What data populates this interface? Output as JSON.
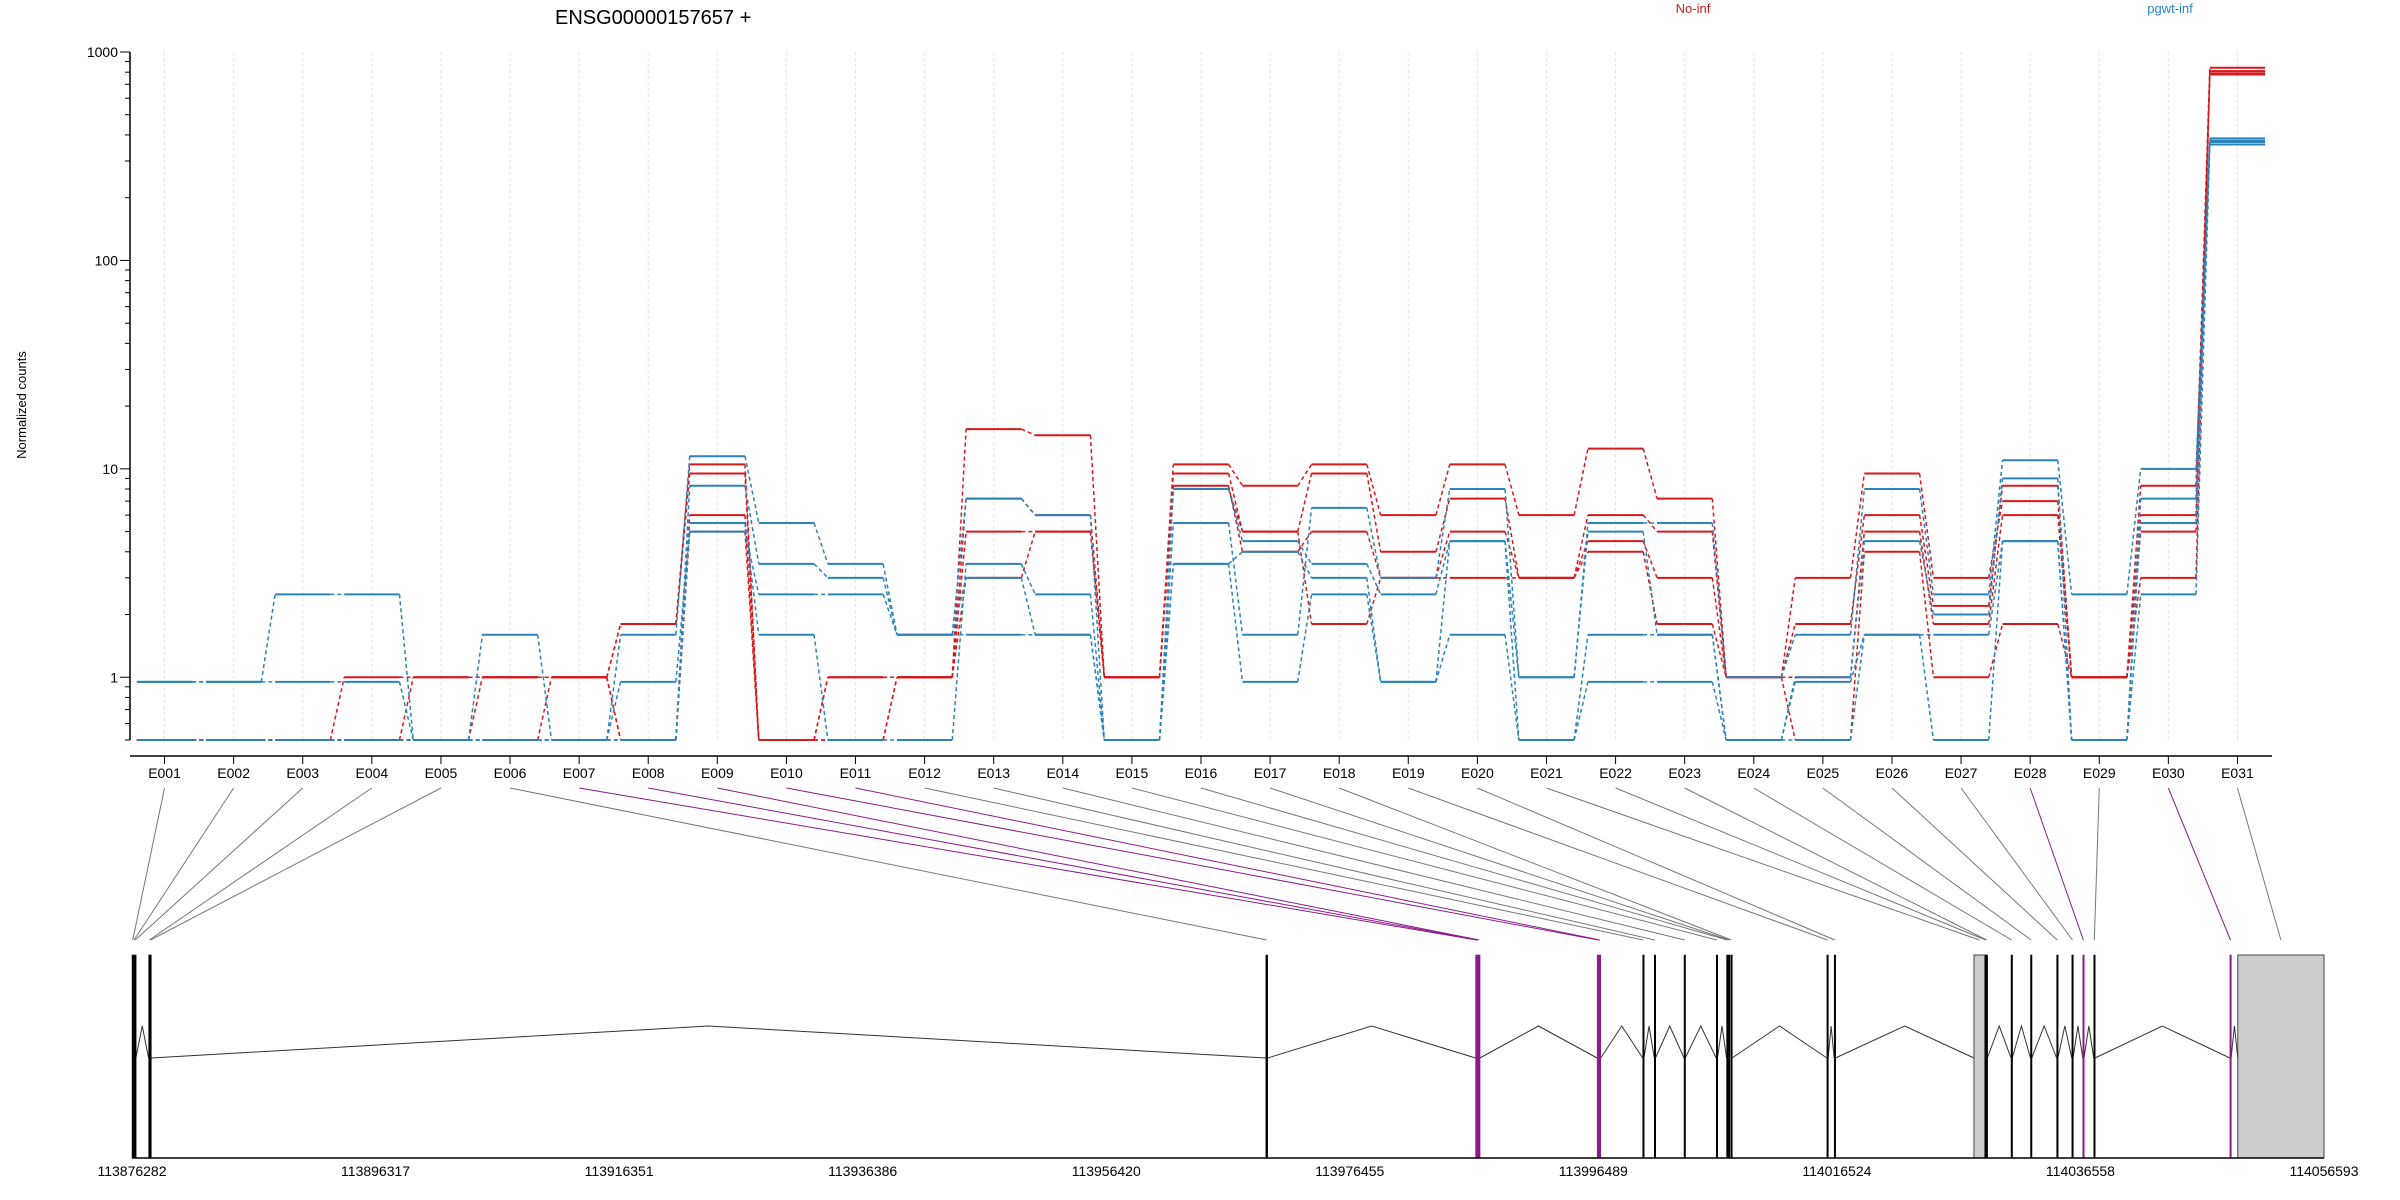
{
  "chart_data": {
    "type": "line",
    "title": "ENSG00000157657 +",
    "ylabel": "Normalized counts",
    "yscale": "log",
    "ylim": [
      0.5,
      1000
    ],
    "yticks": [
      "1",
      "10",
      "100",
      "1000"
    ],
    "categories": [
      "E001",
      "E002",
      "E003",
      "E004",
      "E005",
      "E006",
      "E007",
      "E008",
      "E009",
      "E010",
      "E011",
      "E012",
      "E013",
      "E014",
      "E015",
      "E016",
      "E017",
      "E018",
      "E019",
      "E020",
      "E021",
      "E022",
      "E023",
      "E024",
      "E025",
      "E026",
      "E027",
      "E028",
      "E029",
      "E030",
      "E031"
    ],
    "legend": [
      {
        "label": "No-inf",
        "color": "#d7191c"
      },
      {
        "label": "pgwt-inf",
        "color": "#2b83ba"
      }
    ],
    "series": [
      {
        "group": "No-inf",
        "color": "#d7191c",
        "values": [
          0.5,
          0.5,
          0.5,
          1.0,
          1.0,
          1.0,
          1.0,
          1.8,
          10.5,
          0.5,
          1.0,
          1.0,
          15.5,
          14.5,
          1.0,
          10.5,
          8.3,
          10.5,
          6.0,
          10.5,
          6.0,
          12.5,
          7.2,
          1.0,
          3.0,
          9.5,
          3.0,
          7.0,
          1.0,
          8.3,
          840
        ]
      },
      {
        "group": "No-inf",
        "color": "#d7191c",
        "values": [
          0.5,
          0.5,
          0.5,
          0.5,
          1.0,
          1.0,
          1.0,
          1.8,
          9.5,
          0.5,
          1.0,
          1.0,
          7.2,
          6.0,
          1.0,
          9.5,
          5.0,
          9.5,
          4.0,
          7.2,
          3.0,
          6.0,
          5.0,
          1.0,
          1.8,
          6.0,
          2.2,
          8.3,
          1.0,
          6.0,
          810
        ]
      },
      {
        "group": "No-inf",
        "color": "#d7191c",
        "values": [
          0.5,
          0.5,
          0.5,
          0.5,
          0.5,
          1.0,
          1.0,
          0.5,
          6.0,
          0.5,
          0.5,
          1.0,
          5.0,
          5.0,
          1.0,
          8.3,
          4.0,
          5.0,
          3.0,
          5.0,
          3.0,
          4.5,
          3.0,
          1.0,
          1.0,
          5.0,
          1.8,
          6.0,
          1.0,
          5.0,
          790
        ]
      },
      {
        "group": "No-inf",
        "color": "#d7191c",
        "values": [
          0.5,
          0.5,
          0.5,
          0.5,
          0.5,
          0.5,
          1.0,
          0.5,
          5.0,
          0.5,
          0.5,
          1.0,
          3.0,
          5.0,
          1.0,
          8.0,
          5.0,
          1.8,
          3.0,
          3.0,
          3.0,
          4.0,
          1.8,
          1.0,
          0.5,
          4.0,
          1.0,
          1.8,
          1.0,
          3.0,
          780
        ]
      },
      {
        "group": "pgwt-inf",
        "color": "#2b83ba",
        "values": [
          0.95,
          0.95,
          2.5,
          2.5,
          0.5,
          1.6,
          0.5,
          1.6,
          11.5,
          5.5,
          3.5,
          1.6,
          1.6,
          1.6,
          0.5,
          5.5,
          1.6,
          6.5,
          3.0,
          8.0,
          1.0,
          5.5,
          5.5,
          1.0,
          1.6,
          8.0,
          2.5,
          11.0,
          2.5,
          10.0,
          385
        ]
      },
      {
        "group": "pgwt-inf",
        "color": "#2b83ba",
        "values": [
          0.5,
          0.5,
          0.5,
          0.5,
          0.5,
          0.5,
          0.5,
          0.5,
          8.3,
          3.5,
          3.0,
          1.6,
          7.2,
          6.0,
          0.5,
          8.0,
          4.5,
          3.5,
          2.5,
          4.5,
          1.0,
          5.0,
          1.6,
          0.5,
          1.0,
          4.5,
          2.0,
          9.0,
          0.5,
          7.2,
          375
        ]
      },
      {
        "group": "pgwt-inf",
        "color": "#2b83ba",
        "values": [
          0.5,
          0.5,
          0.5,
          0.5,
          0.5,
          0.5,
          0.5,
          0.5,
          5.5,
          1.6,
          0.5,
          0.5,
          3.5,
          2.5,
          0.5,
          3.5,
          0.95,
          2.5,
          0.95,
          1.6,
          0.5,
          0.95,
          0.95,
          0.5,
          0.95,
          1.6,
          0.5,
          4.5,
          0.5,
          2.5,
          360
        ]
      },
      {
        "group": "pgwt-inf",
        "color": "#2b83ba",
        "values": [
          0.95,
          0.95,
          0.95,
          0.95,
          0.5,
          0.5,
          0.5,
          0.95,
          5.0,
          2.5,
          2.5,
          1.6,
          3.0,
          1.6,
          0.5,
          3.5,
          4.0,
          3.0,
          0.95,
          4.5,
          0.5,
          1.6,
          1.6,
          0.5,
          0.5,
          1.6,
          1.6,
          4.5,
          0.5,
          5.5,
          370
        ]
      }
    ],
    "gene_model": {
      "coordinate_ticks": [
        "113876282",
        "113896317",
        "113916351",
        "113936386",
        "113956420",
        "113976455",
        "113996489",
        "114016524",
        "114036558",
        "114056593"
      ],
      "xlim": [
        113876282,
        114056593
      ],
      "exons": [
        {
          "id": "E001",
          "start": 113876282,
          "end": 113876400,
          "flag": false
        },
        {
          "id": "E002",
          "start": 113876400,
          "end": 113876500,
          "flag": false
        },
        {
          "id": "E003",
          "start": 113876500,
          "end": 113876600,
          "flag": false
        },
        {
          "id": "E004",
          "start": 113877650,
          "end": 113877750,
          "flag": false
        },
        {
          "id": "E005",
          "start": 113877750,
          "end": 113877850,
          "flag": false
        },
        {
          "id": "E006",
          "start": 113969550,
          "end": 113969700,
          "flag": false
        },
        {
          "id": "E007",
          "start": 113986800,
          "end": 113986950,
          "flag": true
        },
        {
          "id": "E008",
          "start": 113986950,
          "end": 113987050,
          "flag": true
        },
        {
          "id": "E009",
          "start": 113987050,
          "end": 113987150,
          "flag": true
        },
        {
          "id": "E010",
          "start": 113996800,
          "end": 113996950,
          "flag": true
        },
        {
          "id": "E011",
          "start": 113996950,
          "end": 113997100,
          "flag": true
        },
        {
          "id": "E012",
          "start": 114000550,
          "end": 114000650,
          "flag": false
        },
        {
          "id": "E013",
          "start": 114001500,
          "end": 114001600,
          "flag": false
        },
        {
          "id": "E014",
          "start": 114003950,
          "end": 114004050,
          "flag": false
        },
        {
          "id": "E015",
          "start": 114006600,
          "end": 114006700,
          "flag": false
        },
        {
          "id": "E016",
          "start": 114007450,
          "end": 114007550,
          "flag": false
        },
        {
          "id": "E017",
          "start": 114007600,
          "end": 114007700,
          "flag": false
        },
        {
          "id": "E018",
          "start": 114007800,
          "end": 114007900,
          "flag": false
        },
        {
          "id": "E019",
          "start": 114015700,
          "end": 114015800,
          "flag": false
        },
        {
          "id": "E020",
          "start": 114016300,
          "end": 114016400,
          "flag": false
        },
        {
          "id": "E021",
          "start": 114027800,
          "end": 114028700,
          "flag": false
        },
        {
          "id": "E022",
          "start": 114028700,
          "end": 114028800,
          "flag": false
        },
        {
          "id": "E023",
          "start": 114028800,
          "end": 114028900,
          "flag": false
        },
        {
          "id": "E024",
          "start": 114030850,
          "end": 114030950,
          "flag": false
        },
        {
          "id": "E025",
          "start": 114032450,
          "end": 114032550,
          "flag": false
        },
        {
          "id": "E026",
          "start": 114034600,
          "end": 114034700,
          "flag": false
        },
        {
          "id": "E027",
          "start": 114035850,
          "end": 114035950,
          "flag": false
        },
        {
          "id": "E028",
          "start": 114036750,
          "end": 114036850,
          "flag": true
        },
        {
          "id": "E029",
          "start": 114037650,
          "end": 114037750,
          "flag": false
        },
        {
          "id": "E030",
          "start": 114048850,
          "end": 114048950,
          "flag": true
        },
        {
          "id": "E031",
          "start": 114049500,
          "end": 114056593,
          "flag": false
        }
      ]
    }
  }
}
